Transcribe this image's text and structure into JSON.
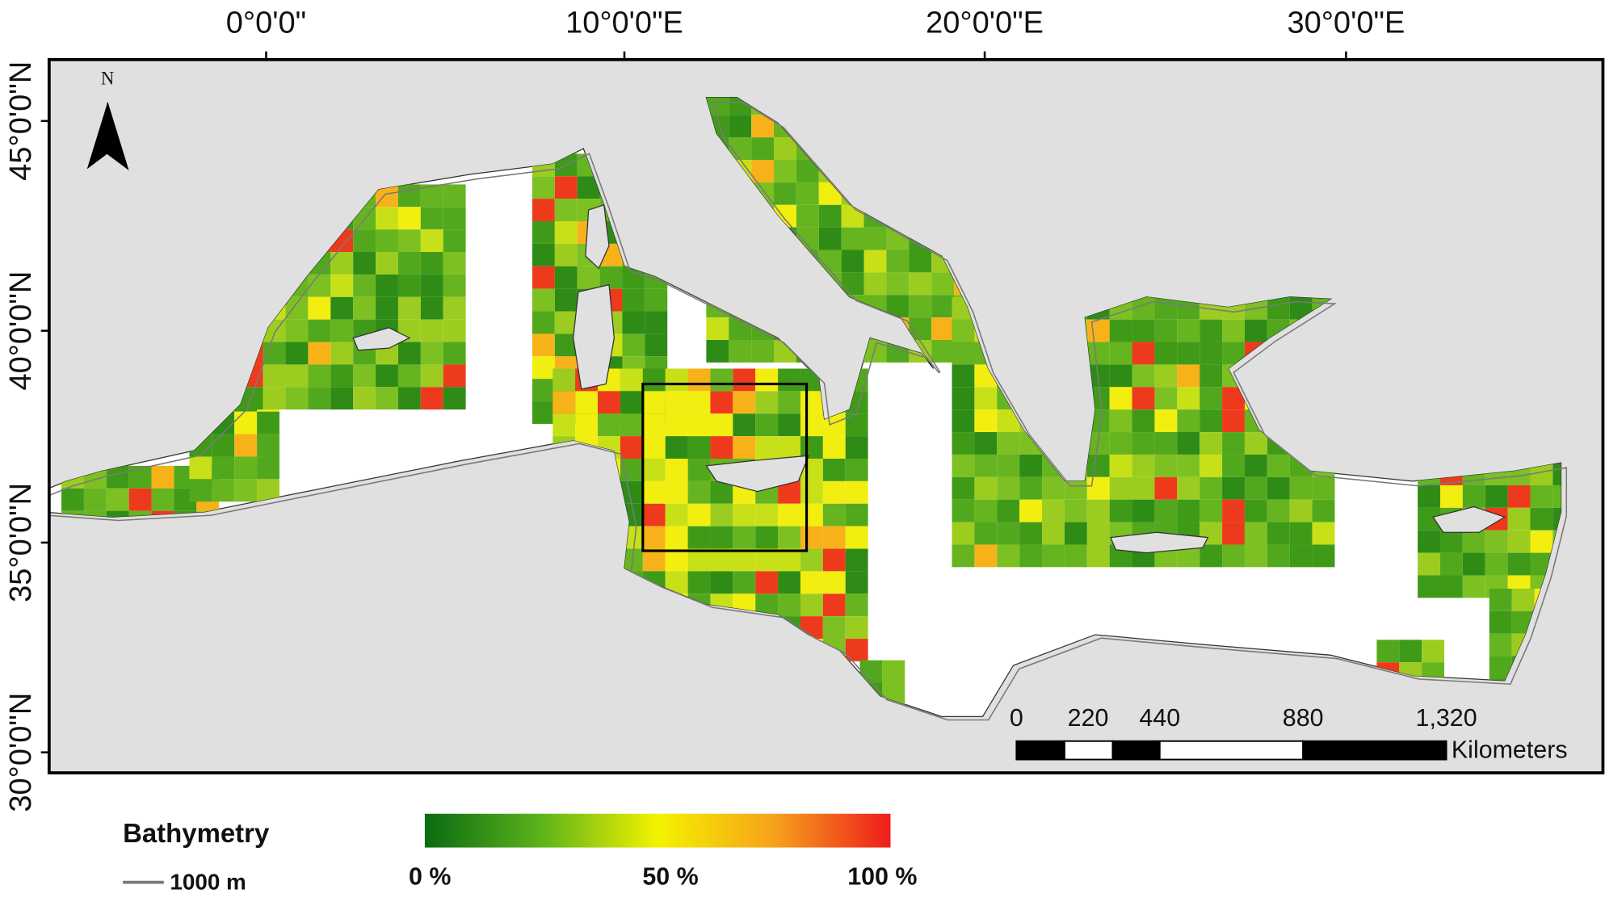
{
  "map": {
    "x_axis_labels": [
      "0°0'0\"",
      "10°0'0\"E",
      "20°0'0\"E",
      "30°0'0\"E"
    ],
    "y_axis_labels": [
      "45°0'0\"N",
      "40°0'0\"N",
      "35°0'0\"N",
      "30°0'0\"N"
    ],
    "north": "N",
    "scale_bar": {
      "labels": [
        "0",
        "220",
        "440",
        "880",
        "1,320"
      ],
      "unit": "Kilometers"
    },
    "legend": {
      "title": "Bathymetry",
      "line_label": "1000 m",
      "colorbar_labels": [
        "0 %",
        "50 %",
        "100 %"
      ]
    }
  }
}
